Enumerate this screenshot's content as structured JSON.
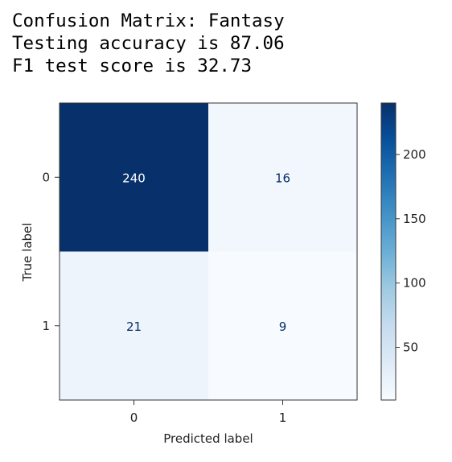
{
  "header": {
    "line1": "Confusion Matrix: Fantasy",
    "line2": "Testing accuracy is 87.06",
    "line3": "F1 test score is 32.73"
  },
  "chart_data": {
    "type": "heatmap",
    "title": "",
    "xlabel": "Predicted label",
    "ylabel": "True label",
    "x_categories": [
      "0",
      "1"
    ],
    "y_categories": [
      "0",
      "1"
    ],
    "values": [
      [
        240,
        16
      ],
      [
        21,
        9
      ]
    ],
    "colormap": "Blues",
    "colorbar": {
      "ticks": [
        50,
        100,
        150,
        200
      ],
      "vmin": 9,
      "vmax": 240
    },
    "grid": false,
    "colors": {
      "max": "#08306b",
      "min": "#f7fbff",
      "text_light": "#ffffff",
      "text_dark": "#08306b"
    }
  }
}
